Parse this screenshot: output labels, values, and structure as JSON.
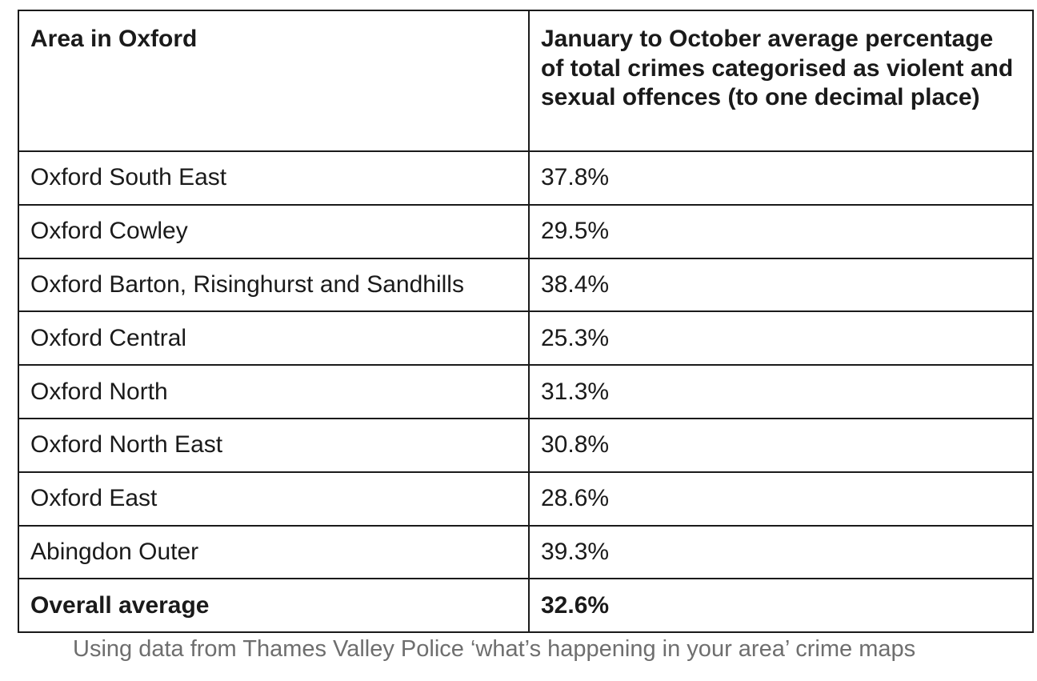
{
  "table": {
    "headers": [
      "Area in Oxford",
      "January to October average percentage of total crimes categorised as violent and sexual offences (to one decimal place)"
    ],
    "rows": [
      [
        "Oxford South East",
        "37.8%"
      ],
      [
        "Oxford Cowley",
        "29.5%"
      ],
      [
        "Oxford Barton, Risinghurst and Sandhills",
        "38.4%"
      ],
      [
        "Oxford Central",
        "25.3%"
      ],
      [
        "Oxford North",
        "31.3%"
      ],
      [
        "Oxford North East",
        "30.8%"
      ],
      [
        "Oxford East",
        "28.6%"
      ],
      [
        "Abingdon Outer",
        "39.3%"
      ]
    ],
    "summary": [
      "Overall average",
      "32.6%"
    ]
  },
  "caption": "Using data from Thames Valley Police ‘what’s happening in your area’ crime maps"
}
